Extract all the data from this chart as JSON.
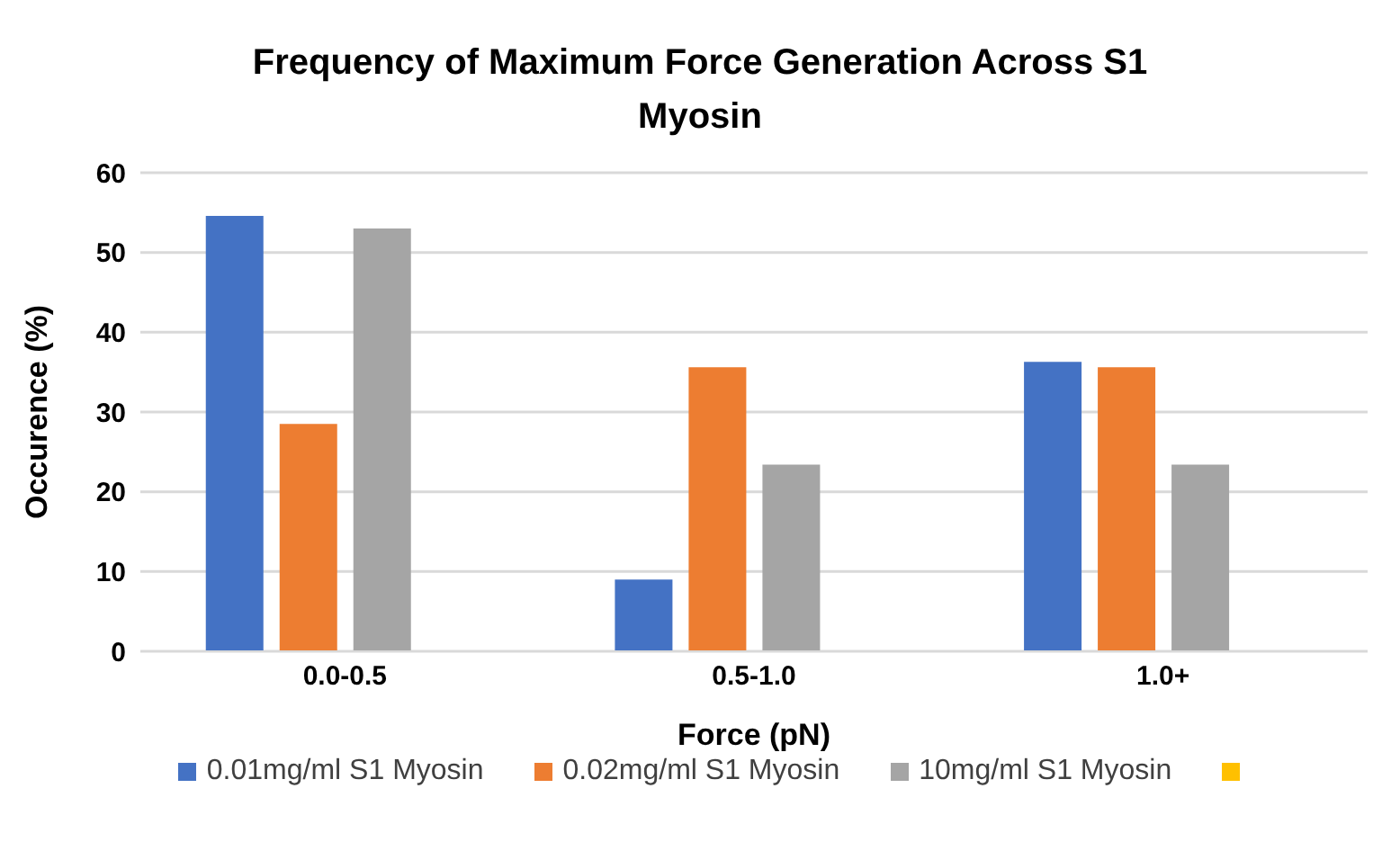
{
  "chart_data": {
    "type": "bar",
    "title": "Frequency of Maximum Force Generation Across S1 Myosin",
    "xlabel": "Force (pN)",
    "ylabel": "Occurence (%)",
    "categories": [
      "0.0-0.5",
      "0.5-1.0",
      "1.0+"
    ],
    "series": [
      {
        "name": "0.01mg/ml S1 Myosin",
        "color": "#4472c4",
        "values": [
          54.6,
          9.0,
          36.3
        ]
      },
      {
        "name": "0.02mg/ml S1 Myosin",
        "color": "#ed7d31",
        "values": [
          28.5,
          35.6,
          35.6
        ]
      },
      {
        "name": "10mg/ml S1 Myosin",
        "color": "#a5a5a5",
        "values": [
          53.0,
          23.4,
          23.4
        ]
      },
      {
        "color": "#ffc000",
        "values": [
          null,
          null,
          null
        ]
      }
    ],
    "ylim": [
      0,
      60
    ],
    "yticks": [
      0,
      10,
      20,
      30,
      40,
      50,
      60
    ],
    "grid": "y",
    "legend": "bottom"
  }
}
